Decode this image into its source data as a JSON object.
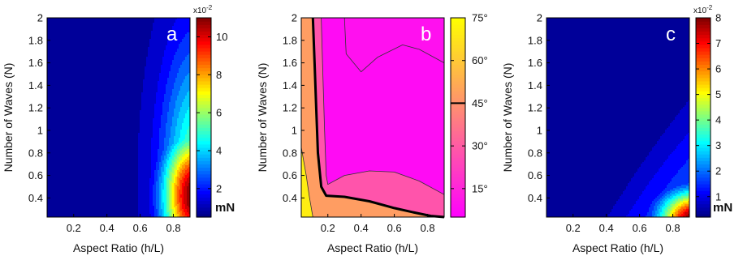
{
  "chart_data": [
    {
      "type": "heatmap",
      "panel_label": "a",
      "xlabel": "Aspect Ratio (h/L)",
      "ylabel": "Number of Waves (N)",
      "xlim": [
        0.04,
        0.9
      ],
      "ylim": [
        0.23,
        2.0
      ],
      "x_ticks": [
        "0.2",
        "0.4",
        "0.6",
        "0.8"
      ],
      "y_ticks": [
        "0.4",
        "0.6",
        "0.8",
        "1",
        "1.2",
        "1.4",
        "1.6",
        "1.8",
        "2"
      ],
      "colorbar": {
        "multiplier": "x10",
        "multiplier_exp": "-2",
        "ticks": [
          "2",
          "4",
          "6",
          "8",
          "10"
        ],
        "unit": "mN",
        "range": [
          0.5,
          11
        ],
        "colormap": "jet"
      },
      "levels": 20,
      "peak": {
        "x": 0.9,
        "y": 0.4,
        "value": 10.8
      },
      "grid": false
    },
    {
      "type": "heatmap",
      "panel_label": "b",
      "xlabel": "Aspect Ratio (h/L)",
      "ylabel": "Number of Waves (N)",
      "xlim": [
        0.04,
        0.9
      ],
      "ylim": [
        0.23,
        2.0
      ],
      "x_ticks": [
        "0.2",
        "0.4",
        "0.6",
        "0.8"
      ],
      "y_ticks": [
        "0.4",
        "0.6",
        "0.8",
        "1",
        "1.2",
        "1.4",
        "1.6",
        "1.8",
        "2"
      ],
      "colorbar": {
        "ticks": [
          "15°",
          "30°",
          "45°",
          "60°",
          "75°"
        ],
        "range": [
          5,
          75
        ],
        "marked_level": 45,
        "colormap": "spring"
      },
      "boundaries": {
        "b_lowest_contour": [
          [
            0.04,
            1.72
          ],
          [
            0.13,
            1.52
          ],
          [
            0.14,
            1.1
          ],
          [
            0.15,
            0.7
          ],
          [
            0.17,
            0.48
          ],
          [
            0.19,
            0.43
          ],
          [
            0.3,
            0.4
          ],
          [
            0.45,
            0.39
          ],
          [
            0.55,
            0.37
          ],
          [
            0.7,
            0.33
          ],
          [
            0.9,
            0.3
          ]
        ],
        "b_thick_45deg_contour": [
          [
            0.11,
            2.0
          ],
          [
            0.12,
            1.6
          ],
          [
            0.13,
            1.2
          ],
          [
            0.14,
            0.8
          ],
          [
            0.16,
            0.5
          ],
          [
            0.19,
            0.42
          ],
          [
            0.3,
            0.41
          ],
          [
            0.45,
            0.37
          ],
          [
            0.6,
            0.31
          ],
          [
            0.72,
            0.27
          ],
          [
            0.82,
            0.24
          ],
          [
            0.9,
            0.23
          ]
        ],
        "b_mid_contour": [
          [
            0.16,
            2.0
          ],
          [
            0.17,
            1.5
          ],
          [
            0.18,
            1.0
          ],
          [
            0.19,
            0.6
          ],
          [
            0.2,
            0.52
          ],
          [
            0.3,
            0.6
          ],
          [
            0.45,
            0.64
          ],
          [
            0.6,
            0.63
          ],
          [
            0.75,
            0.55
          ],
          [
            0.9,
            0.43
          ]
        ],
        "b_top_contour": [
          [
            0.3,
            2.0
          ],
          [
            0.31,
            1.68
          ],
          [
            0.4,
            1.52
          ],
          [
            0.5,
            1.65
          ],
          [
            0.65,
            1.76
          ],
          [
            0.75,
            1.72
          ],
          [
            0.9,
            1.6
          ]
        ]
      },
      "grid": false
    },
    {
      "type": "heatmap",
      "panel_label": "c",
      "xlabel": "Aspect Ratio (h/L)",
      "ylabel": "Number of Waves (N)",
      "xlim": [
        0.04,
        0.9
      ],
      "ylim": [
        0.23,
        2.0
      ],
      "x_ticks": [
        "0.2",
        "0.4",
        "0.6",
        "0.8"
      ],
      "y_ticks": [
        "0.4",
        "0.6",
        "0.8",
        "1",
        "1.2",
        "1.4",
        "1.6",
        "1.8",
        "2"
      ],
      "colorbar": {
        "multiplier": "x10",
        "multiplier_exp": "-2",
        "ticks": [
          "1",
          "2",
          "3",
          "4",
          "5",
          "6",
          "7",
          "8"
        ],
        "unit": "mN",
        "range": [
          0.2,
          8
        ],
        "colormap": "jet"
      },
      "levels": 20,
      "peak": {
        "x": 0.9,
        "y": 0.23,
        "value": 8
      },
      "grid": false
    }
  ]
}
